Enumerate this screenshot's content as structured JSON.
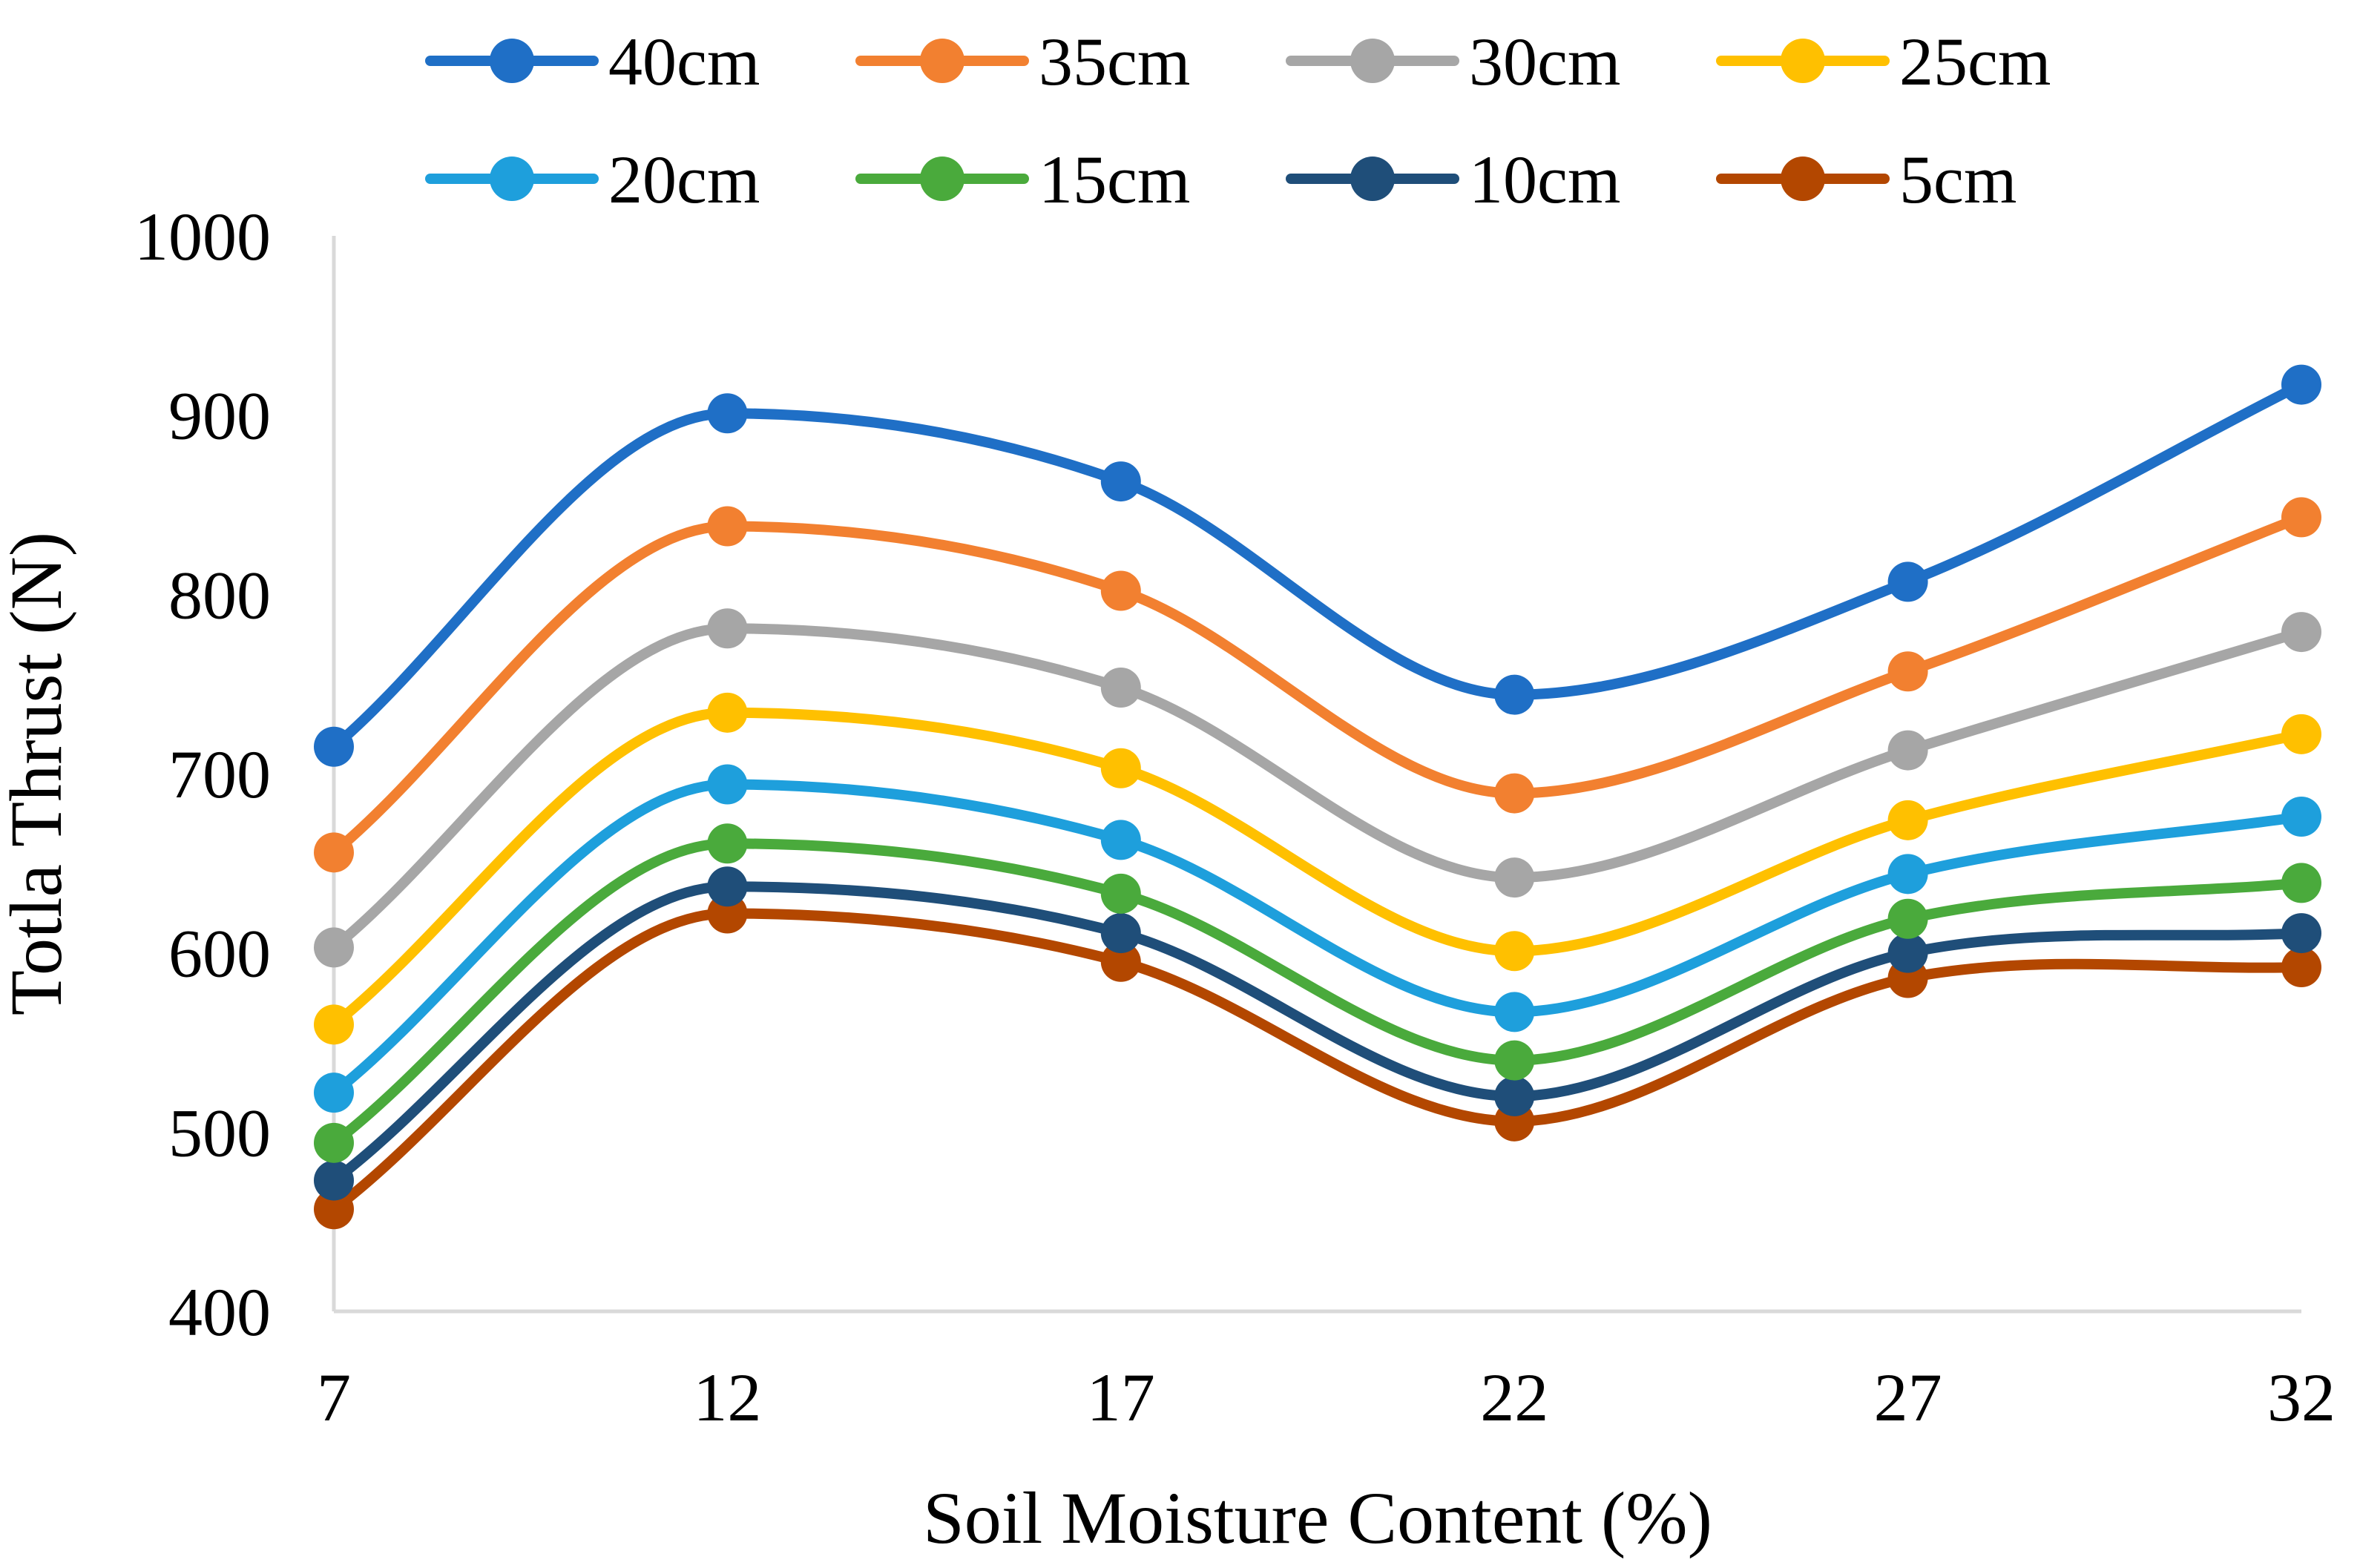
{
  "chart_data": {
    "type": "line",
    "title": "",
    "xlabel": "Soil Moisture Content (%)",
    "ylabel": "Totla Thrust (N)",
    "x": [
      7,
      12,
      17,
      22,
      27,
      32
    ],
    "x_tick_labels": [
      "7",
      "12",
      "17",
      "22",
      "27",
      "32"
    ],
    "y_tick_labels": [
      "400",
      "500",
      "600",
      "700",
      "800",
      "900",
      "1000"
    ],
    "y_ticks": [
      400,
      500,
      600,
      700,
      800,
      900,
      1000
    ],
    "ylim": [
      400,
      1000
    ],
    "grid": false,
    "smooth": true,
    "legend_position": "top",
    "series": [
      {
        "name": "40cm",
        "color": "#1f6fc6",
        "values": [
          715,
          901,
          863,
          744,
          807,
          917
        ]
      },
      {
        "name": "35cm",
        "color": "#f28030",
        "values": [
          656,
          838,
          802,
          689,
          757,
          843
        ]
      },
      {
        "name": "30cm",
        "color": "#a6a6a6",
        "values": [
          603,
          781,
          748,
          642,
          713,
          779
        ]
      },
      {
        "name": "25cm",
        "color": "#ffc000",
        "values": [
          560,
          734,
          703,
          601,
          674,
          722
        ]
      },
      {
        "name": "20cm",
        "color": "#1e9fdc",
        "values": [
          522,
          694,
          663,
          567,
          644,
          676
        ]
      },
      {
        "name": "15cm",
        "color": "#4aaa3c",
        "values": [
          494,
          661,
          633,
          540,
          619,
          639
        ]
      },
      {
        "name": "10cm",
        "color": "#1f4e79",
        "values": [
          473,
          637,
          611,
          520,
          600,
          611
        ]
      },
      {
        "name": "5cm",
        "color": "#b34700",
        "values": [
          457,
          622,
          595,
          506,
          586,
          592
        ]
      }
    ]
  }
}
